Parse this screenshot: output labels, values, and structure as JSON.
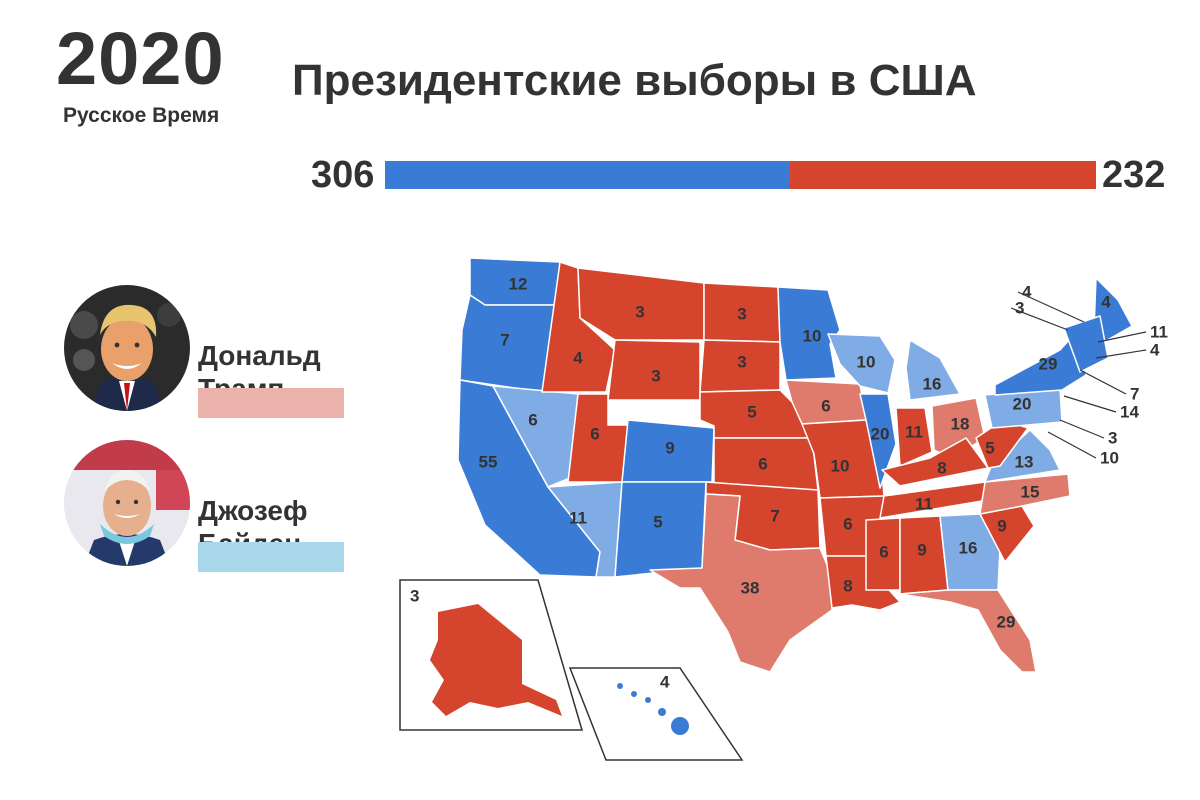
{
  "header": {
    "year": "2020",
    "brand": "Русское Время",
    "title": "Президентские выборы в США"
  },
  "tally": {
    "biden_votes": "306",
    "trump_votes": "232",
    "biden_fraction": 0.569,
    "trump_fraction": 0.431
  },
  "candidates": {
    "trump": {
      "name_line1": "Дональд",
      "name_line2": "Трамп",
      "swatch_color": "#ebb2ab",
      "avatar": "trump-portrait-photo"
    },
    "biden": {
      "name_line1": "Джозеф",
      "name_line2": "Байден",
      "swatch_color": "#a9d8ea",
      "avatar": "biden-portrait-photo"
    }
  },
  "colors": {
    "biden_solid": "#3a7bd5",
    "biden_flip": "#80ace6",
    "trump_solid": "#d5452e",
    "trump_lean": "#df7b6d"
  },
  "map": {
    "states": {
      "WA": "12",
      "OR": "7",
      "CA": "55",
      "NV": "6",
      "ID": "4",
      "MT": "3",
      "WY": "3",
      "UT": "6",
      "AZ": "11",
      "CO": "9",
      "NM": "5",
      "ND": "3",
      "SD": "3",
      "NE": "5",
      "KS": "6",
      "OK": "7",
      "TX": "38",
      "MN": "10",
      "IA": "6",
      "MO": "10",
      "AR": "6",
      "LA": "8",
      "WI": "10",
      "IL": "20",
      "MI": "16",
      "IN": "11",
      "OH": "18",
      "KY": "8",
      "TN": "11",
      "MS": "6",
      "AL": "9",
      "GA": "16",
      "FL": "29",
      "SC": "9",
      "NC": "15",
      "VA": "13",
      "WV": "5",
      "PA": "20",
      "NY": "29",
      "ME": "4",
      "VT": "3",
      "NH": "4",
      "MA": "11",
      "RI": "4",
      "CT": "7",
      "NJ": "14",
      "DE": "3",
      "MD": "10",
      "AK": "3",
      "HI": "4"
    }
  }
}
